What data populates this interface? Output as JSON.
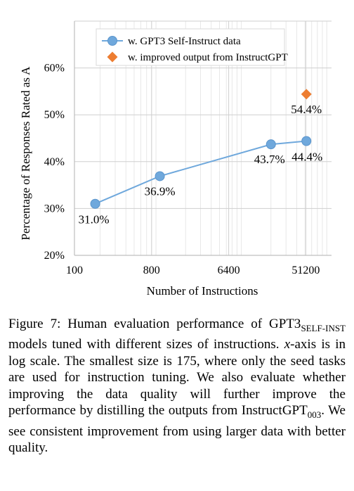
{
  "chart_data": {
    "type": "line",
    "xlabel": "Number of Instructions",
    "ylabel": "Percentage of Responses Rated as A",
    "x_scale": "log",
    "x_ticks": [
      100,
      800,
      6400,
      51200
    ],
    "x_tick_labels": [
      "100",
      "800",
      "6400",
      "51200"
    ],
    "xlim": [
      100,
      102400
    ],
    "y_ticks": [
      20,
      30,
      40,
      50,
      60
    ],
    "y_tick_labels": [
      "20%",
      "30%",
      "40%",
      "50%",
      "60%"
    ],
    "ylim": [
      20,
      70
    ],
    "grid": true,
    "legend_position": "top-center",
    "series": [
      {
        "name": "w. GPT3 Self-Instruct data",
        "color": "#6fa8dc",
        "marker": "circle",
        "points": [
          {
            "x": 175,
            "y": 31.0,
            "label": "31.0%"
          },
          {
            "x": 1000,
            "y": 36.9,
            "label": "36.9%"
          },
          {
            "x": 20000,
            "y": 43.7,
            "label": "43.7%"
          },
          {
            "x": 52000,
            "y": 44.4,
            "label": "44.4%"
          }
        ]
      },
      {
        "name": "w. improved output from InstructGPT",
        "color": "#ed7d31",
        "marker": "diamond",
        "points": [
          {
            "x": 52000,
            "y": 54.4,
            "label": "54.4%"
          }
        ]
      }
    ]
  },
  "caption": {
    "lead": "Figure 7:  Human evaluation performance of GPT3",
    "subscript_model": "SELF-INST",
    "part2": " models tuned with different sizes of instructions.  ",
    "x_var": "x",
    "part3": "-axis is in log scale.  The smallest size is 175, where only the seed tasks are used for instruction tuning. We also evaluate whether improving the data quality will further improve the performance by distilling the outputs from InstructGPT",
    "subscript_version": "003",
    "part4": ". We see consistent improvement from using larger data with better quality."
  }
}
